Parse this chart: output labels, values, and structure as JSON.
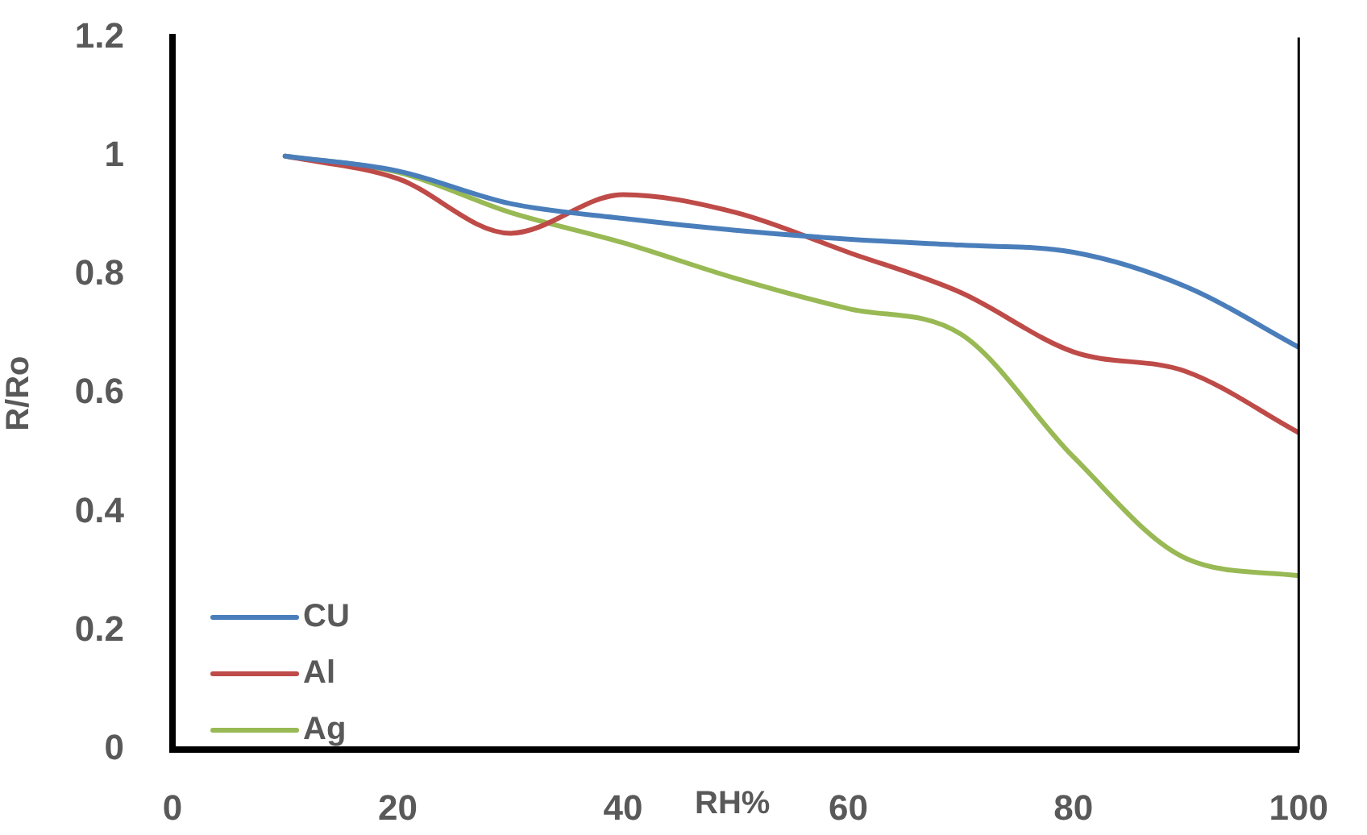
{
  "chart_data": {
    "type": "line",
    "xlabel": "RH%",
    "ylabel": "R/Ro",
    "x": [
      10,
      20,
      30,
      40,
      50,
      60,
      70,
      80,
      90,
      100
    ],
    "xlim": [
      0,
      100
    ],
    "xticks": [
      0,
      20,
      40,
      60,
      80,
      100
    ],
    "ylim": [
      0,
      1.2
    ],
    "yticks": [
      0,
      0.2,
      0.4,
      0.6,
      0.8,
      1,
      1.2
    ],
    "grid": false,
    "legend": "bottom left",
    "marker": "none",
    "line_style": "solid",
    "series": [
      {
        "name": "CU",
        "color": "#4a7ebb",
        "values": [
          1,
          0.975,
          0.92,
          0.895,
          0.875,
          0.86,
          0.85,
          0.838,
          0.78,
          0.678
        ]
      },
      {
        "name": "Al",
        "color": "#be4b48",
        "values": [
          1,
          0.962,
          0.87,
          0.935,
          0.905,
          0.838,
          0.77,
          0.67,
          0.637,
          0.534
        ]
      },
      {
        "name": "Ag",
        "color": "#98b954",
        "values": [
          1,
          0.973,
          0.905,
          0.854,
          0.794,
          0.743,
          0.7,
          0.493,
          0.322,
          0.293
        ]
      }
    ]
  }
}
